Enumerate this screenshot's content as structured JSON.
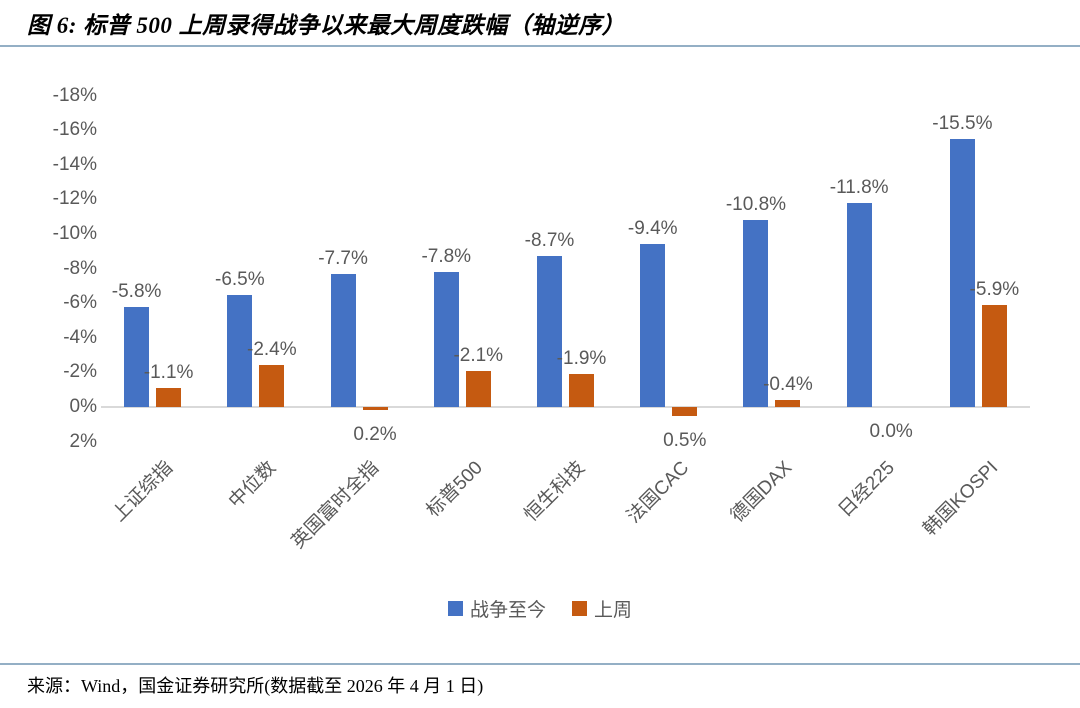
{
  "header": {
    "title": "图 6: 标普 500 上周录得战争以来最大周度跌幅（轴逆序）"
  },
  "footer": {
    "source": "来源：Wind，国金证券研究所(数据截至 2026 年 4 月 1 日)"
  },
  "colors": {
    "rule_blue": "#94AFC5",
    "axis_line": "#D9D9D9",
    "tick_text": "#595959",
    "series_blue": "#4472C4",
    "series_orange": "#C55A11"
  },
  "chart_data": {
    "type": "bar",
    "title": "图 6: 标普 500 上周录得战争以来最大周度跌幅（轴逆序）",
    "categories": [
      "上证综指",
      "中位数",
      "英国富时全指",
      "标普500",
      "恒生科技",
      "法国CAC",
      "德国DAX",
      "日经225",
      "韩国KOSPI"
    ],
    "series": [
      {
        "name": "战争至今",
        "color": "#4472C4",
        "values": [
          -5.8,
          -6.5,
          -7.7,
          -7.8,
          -8.7,
          -9.4,
          -10.8,
          -11.8,
          -15.5
        ],
        "labels": [
          "-5.8%",
          "-6.5%",
          "-7.7%",
          "-7.8%",
          "-8.7%",
          "-9.4%",
          "-10.8%",
          "-11.8%",
          "-15.5%"
        ]
      },
      {
        "name": "上周",
        "color": "#C55A11",
        "values": [
          -1.1,
          -2.4,
          0.2,
          -2.1,
          -1.9,
          0.5,
          -0.4,
          0.0,
          -5.9
        ],
        "labels": [
          "-1.1%",
          "-2.4%",
          "0.2%",
          "-2.1%",
          "-1.9%",
          "0.5%",
          "-0.4%",
          "0.0%",
          "-5.9%"
        ]
      }
    ],
    "y_axis": {
      "reversed": true,
      "min": -18,
      "max": 2,
      "tick_step": 2,
      "ticks": [
        "-18%",
        "-16%",
        "-14%",
        "-12%",
        "-10%",
        "-8%",
        "-6%",
        "-4%",
        "-2%",
        "0%",
        "2%"
      ],
      "tick_values": [
        -18,
        -16,
        -14,
        -12,
        -10,
        -8,
        -6,
        -4,
        -2,
        0,
        2
      ]
    },
    "legend": {
      "position": "bottom",
      "entries": [
        "战争至今",
        "上周"
      ]
    },
    "grid": false,
    "data_labels": true
  }
}
